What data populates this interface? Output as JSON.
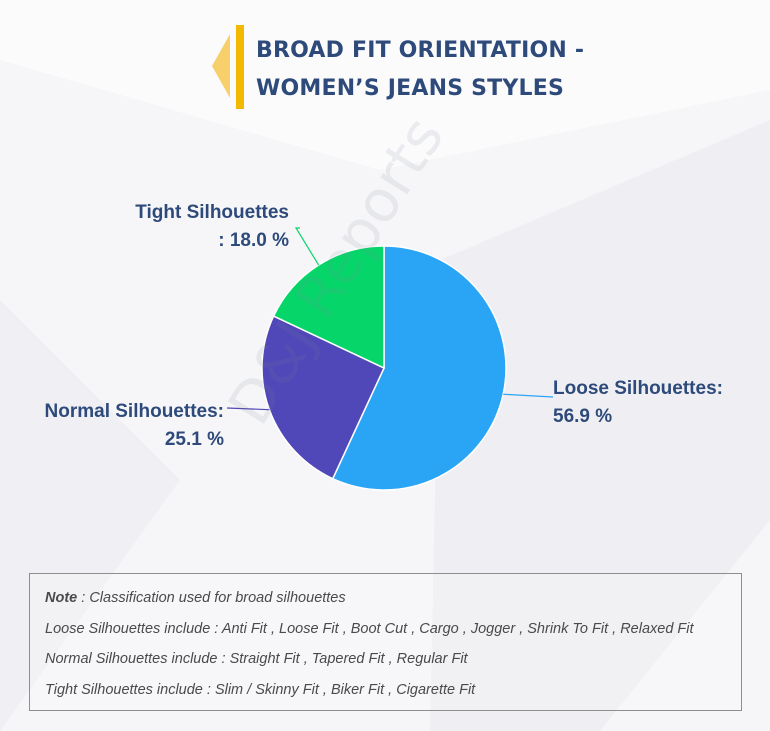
{
  "title": {
    "line1": "BROAD FIT ORIENTATION -",
    "line2": "WOMEN’S JEANS STYLES"
  },
  "colors": {
    "title": "#2d4a7a",
    "loose": "#2aa4f4",
    "normal": "#5047b8",
    "tight": "#06d66a",
    "accent_yellow": "#f5b800"
  },
  "chart_data": {
    "type": "pie",
    "start_angle_deg": 0,
    "direction": "clockwise",
    "slices": [
      {
        "name": "Loose Silhouettes",
        "value": 56.9,
        "label_line1": "Loose Silhouettes:",
        "label_line2": "56.9 %",
        "color": "#2aa4f4"
      },
      {
        "name": "Normal Silhouettes",
        "value": 25.1,
        "label_line1": "Normal Silhouettes:",
        "label_line2": "25.1 %",
        "color": "#5047b8"
      },
      {
        "name": "Tight Silhouettes",
        "value": 18.0,
        "label_line1": "Tight Silhouettes",
        "label_line2": ": 18.0 %",
        "color": "#06d66a"
      }
    ]
  },
  "watermark": "D&J Reports",
  "note": {
    "line0_label": "Note",
    "line0_text": " : Classification used for broad silhouettes",
    "line1_label": "Loose Silhouettes include",
    "line1_text": " : Anti Fit , Loose Fit , Boot Cut , Cargo , Jogger , Shrink To Fit , Relaxed Fit",
    "line2_label": "Normal Silhouettes include",
    "line2_text": " : Straight Fit , Tapered Fit , Regular Fit",
    "line3_label": "Tight Silhouettes include",
    "line3_text": " : Slim / Skinny Fit , Biker Fit , Cigarette Fit"
  }
}
